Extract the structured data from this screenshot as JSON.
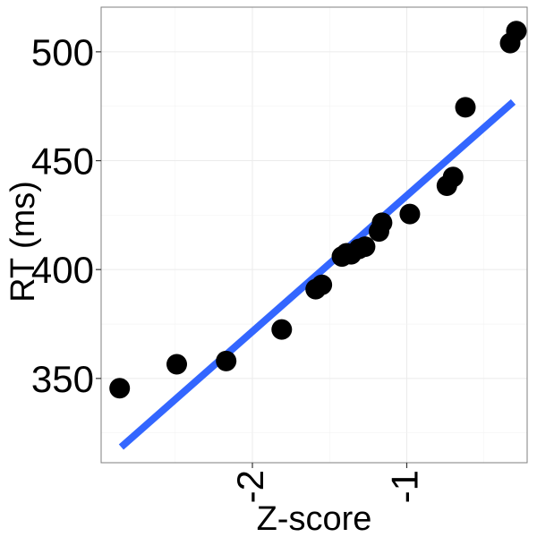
{
  "chart_data": {
    "type": "scatter",
    "xlabel": "Z-score",
    "ylabel": "RT (ms)",
    "xlim": [
      -2.98,
      -0.22
    ],
    "ylim": [
      311.3,
      520.5
    ],
    "xticks": [
      {
        "value": -2,
        "label": "-2"
      },
      {
        "value": -1,
        "label": "-1"
      }
    ],
    "yticks": [
      {
        "value": 350,
        "label": "350"
      },
      {
        "value": 400,
        "label": "400"
      },
      {
        "value": 450,
        "label": "450"
      },
      {
        "value": 500,
        "label": "500"
      }
    ],
    "grid": true,
    "points": [
      {
        "x": -2.86,
        "y": 345.5
      },
      {
        "x": -2.49,
        "y": 356.5
      },
      {
        "x": -2.17,
        "y": 358.0
      },
      {
        "x": -1.81,
        "y": 372.5
      },
      {
        "x": -1.59,
        "y": 391.0
      },
      {
        "x": -1.55,
        "y": 393.0
      },
      {
        "x": -1.42,
        "y": 406.0
      },
      {
        "x": -1.39,
        "y": 407.5
      },
      {
        "x": -1.36,
        "y": 407.0
      },
      {
        "x": -1.31,
        "y": 409.5
      },
      {
        "x": -1.27,
        "y": 410.5
      },
      {
        "x": -1.18,
        "y": 417.5
      },
      {
        "x": -1.16,
        "y": 421.5
      },
      {
        "x": -0.98,
        "y": 425.5
      },
      {
        "x": -0.74,
        "y": 438.5
      },
      {
        "x": -0.7,
        "y": 442.5
      },
      {
        "x": -0.62,
        "y": 474.5
      },
      {
        "x": -0.33,
        "y": 504.0
      },
      {
        "x": -0.29,
        "y": 509.5
      }
    ],
    "fit_line": {
      "x": [
        -2.85,
        -0.31
      ],
      "y": [
        318.5,
        477.0
      ],
      "color": "#3366ff"
    },
    "point_color": "#000000"
  }
}
